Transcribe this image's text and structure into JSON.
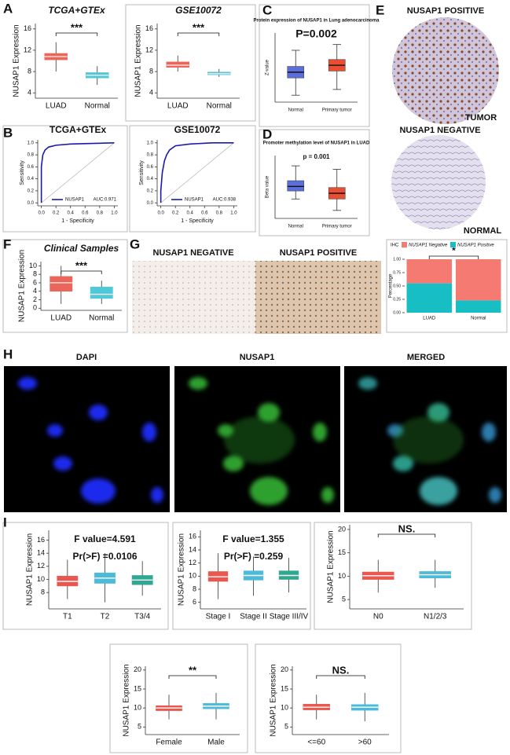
{
  "panel_labels": [
    "A",
    "B",
    "C",
    "D",
    "E",
    "F",
    "G",
    "H",
    "I"
  ],
  "images": [
    {
      "label": "NUSAP1 POSITIVE",
      "caption": "TUMOR"
    },
    {
      "label": "NUSAP1 NEGATIVE",
      "caption": "NORMAL"
    },
    {
      "label": "NUSAP1 NEGATIVE"
    },
    {
      "label": "NUSAP1 POSITIVE"
    },
    {
      "label": "DAPI"
    },
    {
      "label": "NUSAP1"
    },
    {
      "label": "MERGED"
    }
  ],
  "chart_data": [
    {
      "type": "box",
      "title": "TCGA+GTEx",
      "title_color": "#4a7fb0",
      "title_italic": true,
      "ylabel": "NUSAP1 Expression",
      "categories": [
        "LUAD",
        "Normal"
      ],
      "colors": [
        "#e8564a",
        "#3cc4d6"
      ],
      "median_color": "#ffe6e0",
      "boxes": [
        {
          "median": 10.8,
          "q1": 10.2,
          "q3": 11.4,
          "low": 8,
          "high": 13.5
        },
        {
          "median": 7.3,
          "q1": 6.8,
          "q3": 7.8,
          "low": 5.5,
          "high": 9
        }
      ],
      "ylim": [
        3,
        17
      ],
      "yticks": [
        4,
        8,
        12,
        16
      ],
      "significance": "***"
    },
    {
      "type": "box",
      "title": "GSE10072",
      "title_color": "#4a7fb0",
      "title_italic": true,
      "ylabel": "NUSAP1 Expression",
      "categories": [
        "LUAD",
        "Normal"
      ],
      "colors": [
        "#e8564a",
        "#3cc4d6"
      ],
      "median_color": "#ffe6e0",
      "boxes": [
        {
          "median": 9.2,
          "q1": 8.8,
          "q3": 9.8,
          "low": 8,
          "high": 11
        },
        {
          "median": 7.6,
          "q1": 7.4,
          "q3": 7.9,
          "low": 7,
          "high": 8.5
        }
      ],
      "ylim": [
        3,
        17
      ],
      "yticks": [
        4,
        8,
        12,
        16
      ],
      "significance": "***"
    },
    {
      "type": "box",
      "title": "Protein expression of NUSAP1 in Lung adenocarcinoma",
      "ylabel": "Z-value",
      "categories": [
        "Normal",
        "Primary tumor"
      ],
      "colors": [
        "#4a5fd8",
        "#e83a1c"
      ],
      "median_color": "#111",
      "boxes": [
        {
          "median": -0.4,
          "q1": -0.9,
          "q3": 0.1,
          "low": -2.4,
          "high": 1.5
        },
        {
          "median": 0.2,
          "q1": -0.3,
          "q3": 0.7,
          "low": -1.9,
          "high": 2.0
        }
      ],
      "ylim": [
        -3,
        3
      ],
      "annotations": [
        "P=0.002"
      ]
    },
    {
      "type": "roc",
      "title": "TCGA+GTEx",
      "xlabel": "1 - Specificity",
      "ylabel": "Sensitivity",
      "color": "#1a1aaa",
      "legend": {
        "name": "NUSAP1",
        "auc": "AUC:0.971"
      },
      "x": [
        0,
        0,
        0.02,
        0.05,
        0.1,
        0.2,
        0.4,
        0.7,
        1
      ],
      "y": [
        0,
        0.6,
        0.8,
        0.88,
        0.93,
        0.96,
        0.98,
        0.99,
        1
      ],
      "xlim": [
        -0.05,
        1.05
      ],
      "ylim": [
        -0.05,
        1.05
      ],
      "xticks": [
        {
          "value": 0,
          "label": "0.0"
        },
        0.2,
        0.4,
        0.6,
        0.8,
        {
          "value": 1,
          "label": "1.0"
        }
      ],
      "yticks": [
        {
          "value": 0,
          "label": "0.0"
        },
        0.2,
        0.4,
        0.6,
        0.8,
        {
          "value": 1,
          "label": "1.0"
        }
      ]
    },
    {
      "type": "roc",
      "title": "GSE10072",
      "xlabel": "1 - Specificity",
      "ylabel": "Sensitivity",
      "color": "#1a1aaa",
      "legend": {
        "name": "NUSAP1",
        "auc": "AUC:0.938"
      },
      "x": [
        0,
        0,
        0.02,
        0.05,
        0.08,
        0.12,
        0.2,
        0.4,
        0.7,
        1
      ],
      "y": [
        0,
        0.2,
        0.5,
        0.7,
        0.8,
        0.88,
        0.95,
        0.98,
        1,
        1
      ],
      "xlim": [
        -0.05,
        1.05
      ],
      "ylim": [
        -0.05,
        1.05
      ],
      "xticks": [
        {
          "value": 0,
          "label": "0.0"
        },
        0.2,
        0.4,
        0.6,
        0.8,
        {
          "value": 1,
          "label": "1.0"
        }
      ],
      "yticks": [
        {
          "value": 0,
          "label": "0.0"
        },
        0.2,
        0.4,
        0.6,
        0.8,
        {
          "value": 1,
          "label": "1.0"
        }
      ]
    },
    {
      "type": "box",
      "title": "Promoter methylation level of NUSAP1 in LUAD",
      "ylabel": "Beta value",
      "categories": [
        "Normal",
        "Primary tumor"
      ],
      "colors": [
        "#4a5fd8",
        "#e83a1c"
      ],
      "median_color": "#111",
      "boxes": [
        {
          "median": 0.063,
          "q1": 0.059,
          "q3": 0.068,
          "low": 0.052,
          "high": 0.081
        },
        {
          "median": 0.057,
          "q1": 0.052,
          "q3": 0.062,
          "low": 0.042,
          "high": 0.078
        }
      ],
      "ylim": [
        0.035,
        0.09
      ],
      "annotations": [
        "p = 0.001"
      ]
    },
    {
      "type": "box",
      "title": "Clinical Samples",
      "title_color": "#4a7fb0",
      "title_italic": true,
      "ylabel": "NUSAP1 Expression",
      "categories": [
        "LUAD",
        "Normal"
      ],
      "colors": [
        "#e8564a",
        "#3cc4d6"
      ],
      "median_color": "#ffe6e0",
      "boxes": [
        {
          "median": 6,
          "q1": 4,
          "q3": 7.5,
          "low": 1,
          "high": 10
        },
        {
          "median": 3.3,
          "q1": 2.3,
          "q3": 5,
          "low": 1,
          "high": 6.5
        }
      ],
      "ylim": [
        -0.5,
        11
      ],
      "yticks": [
        0,
        2,
        4,
        6,
        8,
        10
      ],
      "significance": "***"
    },
    {
      "type": "stacked_bar",
      "ylabel": "Percentage",
      "legend_title": "IHC",
      "categories": [
        "LUAD",
        "Normal"
      ],
      "series": [
        {
          "name": "NUSAP1 Positive",
          "color": "#17bfc4",
          "values": [
            0.55,
            0.23
          ]
        },
        {
          "name": "NUSAP1 Negative",
          "color": "#f47a72",
          "values": [
            0.45,
            0.77
          ]
        }
      ],
      "ylim": [
        0,
        1
      ],
      "yticks": [
        {
          "value": 0,
          "label": "0.00"
        },
        0.25,
        {
          "value": 0.5,
          "label": "0.50"
        },
        0.75,
        {
          "value": 1,
          "label": "1.00"
        }
      ],
      "significance": "*"
    },
    {
      "type": "box",
      "ylabel": "NUSAP1 Expression",
      "categories": [
        "T1",
        "T2",
        "T3/4"
      ],
      "colors": [
        "#e8453c",
        "#3ab3d6",
        "#1a9e85"
      ],
      "median_color": "#ffffff",
      "boxes": [
        {
          "median": 9.7,
          "q1": 9,
          "q3": 10.5,
          "low": 7,
          "high": 13
        },
        {
          "median": 10.2,
          "q1": 9.4,
          "q3": 11,
          "low": 6.5,
          "high": 14
        },
        {
          "median": 9.9,
          "q1": 9.2,
          "q3": 10.6,
          "low": 7.5,
          "high": 12.8
        }
      ],
      "ylim": [
        5.5,
        17.5
      ],
      "yticks": [
        8,
        10,
        12,
        14,
        16
      ],
      "annotations": [
        "F value=4.591",
        "Pr(>F) =0.0106"
      ]
    },
    {
      "type": "box",
      "ylabel": "NUSAP1 Expression",
      "categories": [
        "Stage I",
        "Stage II",
        "Stage III/IV"
      ],
      "colors": [
        "#e8453c",
        "#3ab3d6",
        "#1a9e85"
      ],
      "median_color": "#ffffff",
      "boxes": [
        {
          "median": 9.9,
          "q1": 9.2,
          "q3": 10.7,
          "low": 6.5,
          "high": 13.5
        },
        {
          "median": 10.1,
          "q1": 9.4,
          "q3": 10.8,
          "low": 7,
          "high": 13
        },
        {
          "median": 10.1,
          "q1": 9.5,
          "q3": 10.8,
          "low": 7.5,
          "high": 12.8
        }
      ],
      "ylim": [
        5,
        17
      ],
      "yticks": [
        6,
        8,
        10,
        12,
        14,
        16
      ],
      "annotations": [
        "F value=1.355",
        "Pr(>F) =0.259"
      ]
    },
    {
      "type": "box",
      "ylabel": "NUSAP1 Expression",
      "categories": [
        "N0",
        "N1/2/3"
      ],
      "colors": [
        "#e8453c",
        "#3ab3d6"
      ],
      "median_color": "#ffffff",
      "boxes": [
        {
          "median": 10.1,
          "q1": 9.3,
          "q3": 10.9,
          "low": 6.5,
          "high": 13.5
        },
        {
          "median": 10.3,
          "q1": 9.6,
          "q3": 11,
          "low": 7.5,
          "high": 13.5
        }
      ],
      "ylim": [
        3,
        21
      ],
      "yticks": [
        5,
        10,
        15,
        20
      ],
      "significance": "NS."
    },
    {
      "type": "box",
      "ylabel": "NUSAP1 Expression",
      "categories": [
        "Female",
        "Male"
      ],
      "colors": [
        "#e8453c",
        "#3ab3d6"
      ],
      "median_color": "#ffffff",
      "boxes": [
        {
          "median": 10,
          "q1": 9.3,
          "q3": 10.6,
          "low": 7,
          "high": 13.5
        },
        {
          "median": 10.5,
          "q1": 9.8,
          "q3": 11.2,
          "low": 7,
          "high": 14
        }
      ],
      "ylim": [
        3,
        21
      ],
      "yticks": [
        5,
        10,
        15,
        20
      ],
      "significance": "**"
    },
    {
      "type": "box",
      "ylabel": "NUSAP1 Expression",
      "categories": [
        "<=60",
        ">60"
      ],
      "colors": [
        "#e8453c",
        "#3ab3d6"
      ],
      "median_color": "#ffffff",
      "boxes": [
        {
          "median": 10.2,
          "q1": 9.5,
          "q3": 11,
          "low": 7,
          "high": 13.5
        },
        {
          "median": 10.2,
          "q1": 9.4,
          "q3": 10.9,
          "low": 6.5,
          "high": 14
        }
      ],
      "ylim": [
        3,
        21
      ],
      "yticks": [
        5,
        10,
        15,
        20
      ],
      "significance": "NS."
    }
  ]
}
